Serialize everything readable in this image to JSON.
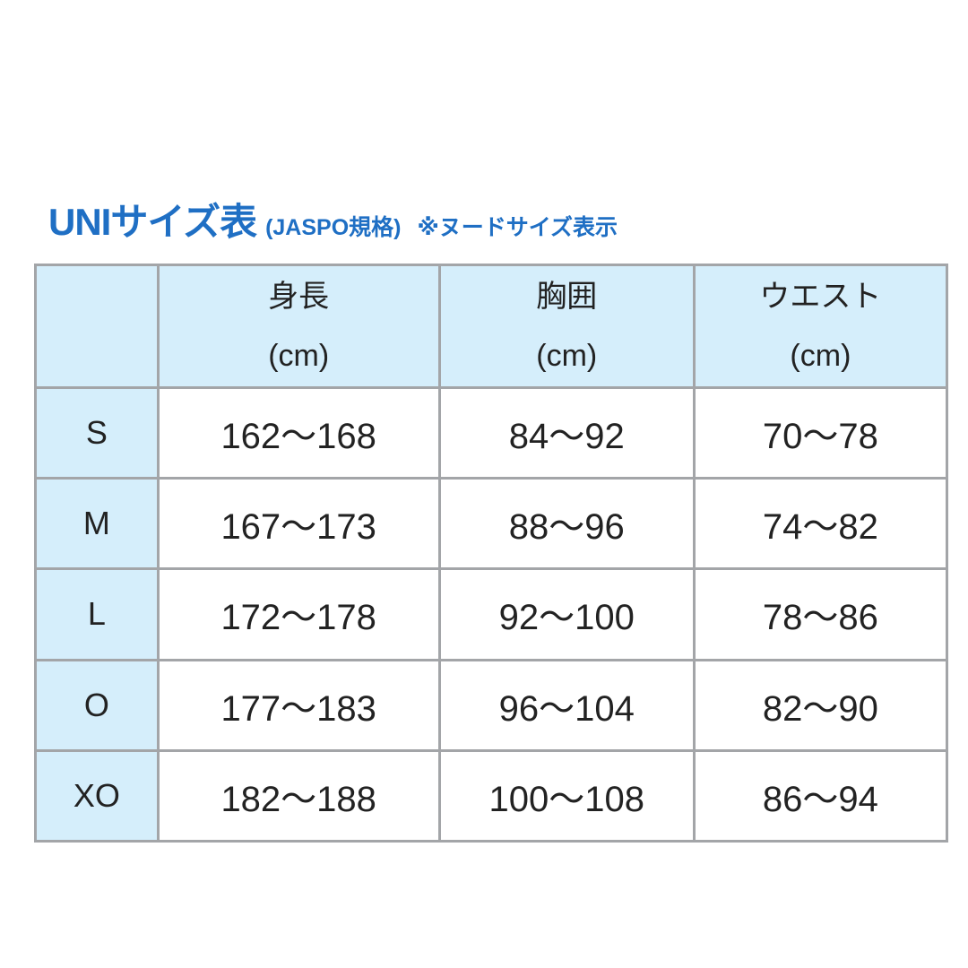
{
  "title": {
    "main": "UNIサイズ表",
    "sub": "(JASPO規格)",
    "note": "※ヌードサイズ表示",
    "color": "#1f6fc4"
  },
  "table": {
    "header_bg": "#d5eefb",
    "headers": [
      {
        "label": "",
        "unit": ""
      },
      {
        "label": "身長",
        "unit": "(cm)"
      },
      {
        "label": "胸囲",
        "unit": "(cm)"
      },
      {
        "label": "ウエスト",
        "unit": "(cm)"
      }
    ],
    "rows": [
      {
        "size": "S",
        "height": "162～168",
        "chest": "84～92",
        "waist": "70～78"
      },
      {
        "size": "M",
        "height": "167～173",
        "chest": "88～96",
        "waist": "74～82"
      },
      {
        "size": "L",
        "height": "172～178",
        "chest": "92～100",
        "waist": "78～86"
      },
      {
        "size": "O",
        "height": "177～183",
        "chest": "96～104",
        "waist": "82～90"
      },
      {
        "size": "XO",
        "height": "182～188",
        "chest": "100～108",
        "waist": "86～94"
      }
    ]
  }
}
